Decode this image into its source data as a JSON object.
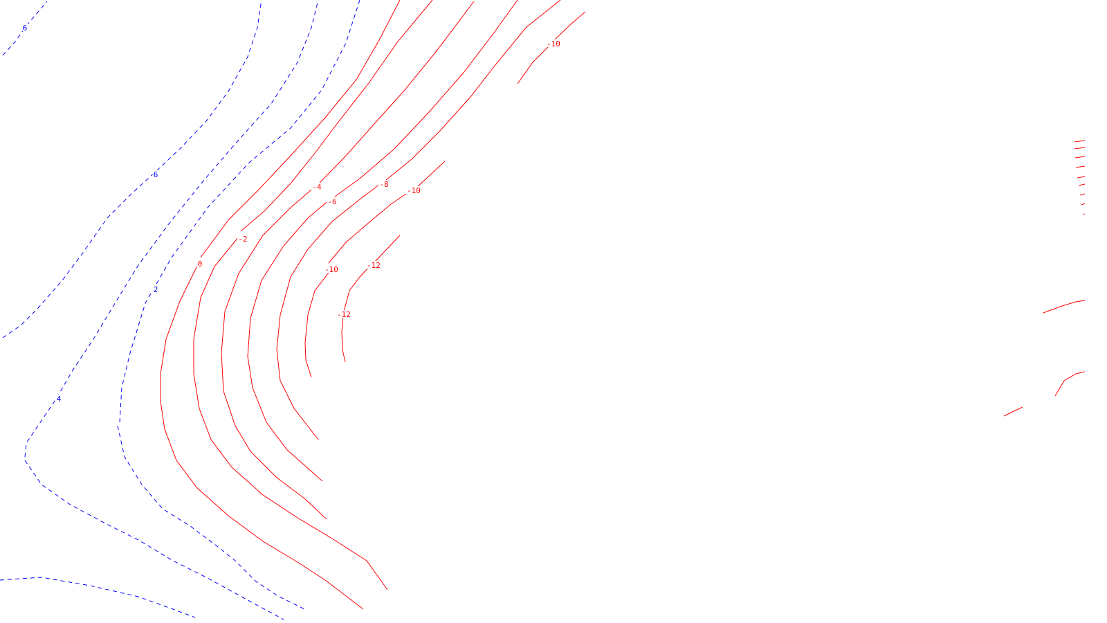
{
  "map": {
    "colors": {
      "positive": "#0000ff",
      "negative": "#ff0000",
      "background": "#ffffff"
    },
    "line_styles": {
      "positive": "dashed",
      "negative": "solid"
    },
    "contour_labels": [
      "6",
      "6",
      "2",
      "4",
      "0",
      "-2",
      "-4",
      "-6",
      "-8",
      "-10",
      "-10",
      "-10",
      "-12",
      "-12"
    ]
  }
}
